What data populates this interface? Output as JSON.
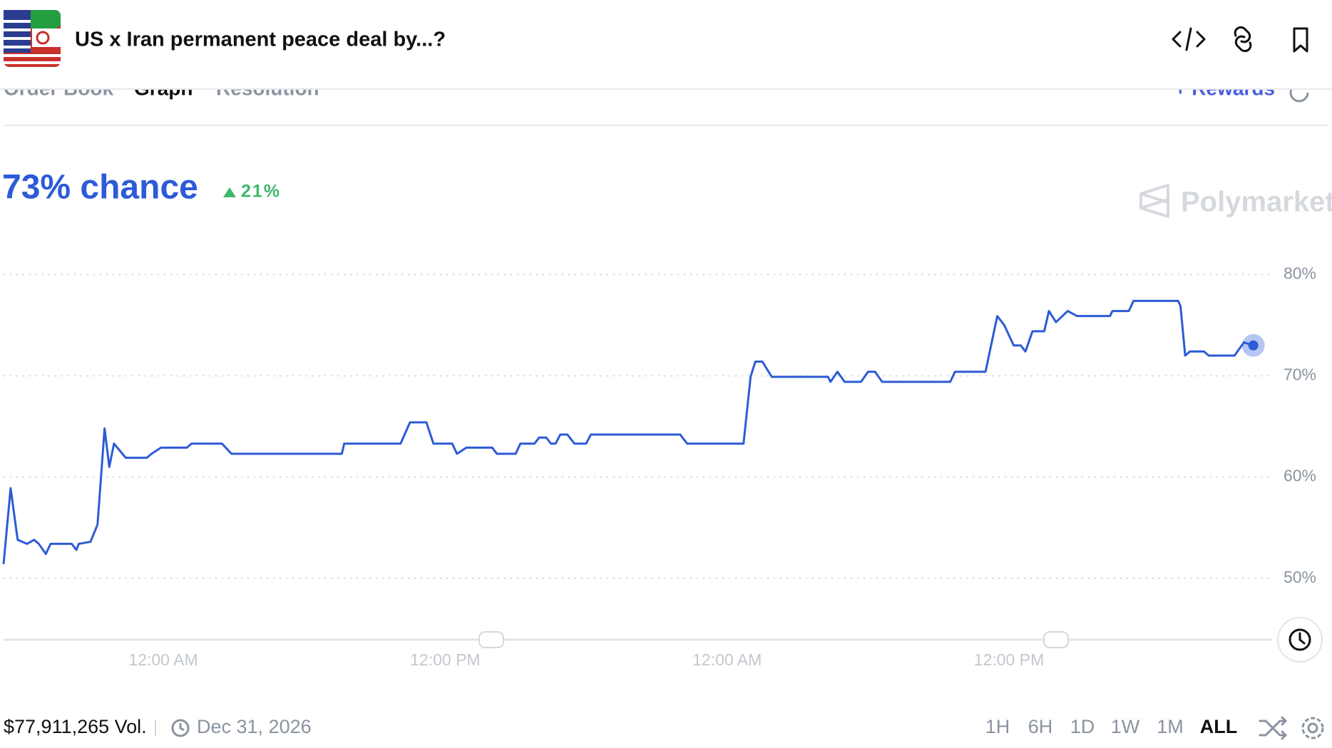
{
  "header": {
    "title": "US x Iran permanent peace deal by...?"
  },
  "tabs": [
    "Order Book",
    "Graph",
    "Resolution",
    "+ Rewards"
  ],
  "market": {
    "headline": "73% chance",
    "change": "21%",
    "brand": "Polymarket"
  },
  "chart_data": {
    "type": "line",
    "x": [
      5.2,
      5.5,
      5.8,
      6.2,
      6.5,
      6.7,
      7.0,
      7.2,
      8.1,
      8.3,
      8.4,
      8.9,
      9.2,
      9.5,
      9.7,
      9.9,
      10.4,
      11.3,
      11.5,
      11.9,
      13.0,
      13.2,
      14.5,
      14.9,
      19.6,
      19.7,
      22.1,
      22.5,
      23.2,
      23.5,
      24.3,
      24.5,
      24.9,
      26.0,
      26.2,
      27.0,
      27.2,
      27.8,
      28.0,
      28.3,
      28.5,
      28.7,
      28.9,
      29.2,
      29.5,
      30.0,
      30.2,
      34.0,
      34.3,
      36.7,
      37.0,
      37.2,
      37.5,
      37.9,
      40.3,
      40.4,
      40.7,
      41.0,
      41.7,
      42.0,
      42.3,
      42.6,
      45.5,
      45.7,
      47.0,
      47.5,
      47.8,
      48.2,
      48.5,
      48.7,
      49.0,
      49.5,
      49.7,
      50.0,
      50.5,
      50.9,
      52.3,
      52.4,
      53.1,
      53.3,
      55.2,
      55.3,
      55.5,
      55.7,
      56.3,
      56.5,
      57.6,
      58.0,
      58.4
    ],
    "series": [
      {
        "color": "#2d5bd7",
        "values": [
          51.4,
          58.9,
          53.8,
          53.4,
          53.8,
          53.4,
          52.4,
          53.4,
          53.4,
          52.8,
          53.4,
          53.6,
          55.3,
          64.8,
          61.0,
          63.3,
          61.9,
          61.9,
          62.3,
          62.9,
          62.9,
          63.3,
          63.3,
          62.3,
          62.3,
          63.3,
          63.3,
          65.4,
          65.4,
          63.3,
          63.3,
          62.3,
          62.9,
          62.9,
          62.3,
          62.3,
          63.3,
          63.3,
          63.9,
          63.9,
          63.3,
          63.3,
          64.2,
          64.2,
          63.3,
          63.3,
          64.2,
          64.2,
          63.3,
          63.3,
          69.9,
          71.4,
          71.4,
          69.9,
          69.9,
          69.4,
          70.4,
          69.4,
          69.4,
          70.4,
          70.4,
          69.4,
          69.4,
          70.4,
          70.4,
          75.9,
          75.0,
          73.0,
          73.0,
          72.4,
          74.4,
          74.4,
          76.4,
          75.3,
          76.4,
          75.9,
          75.9,
          76.4,
          76.4,
          77.4,
          77.4,
          76.9,
          72.0,
          72.4,
          72.4,
          72.0,
          72.0,
          73.3,
          73.0
        ]
      }
    ],
    "xlim": [
      5.2,
      59.2
    ],
    "ylim": [
      44,
      82
    ],
    "xticks": [
      {
        "value": 12,
        "label": "12:00 AM"
      },
      {
        "value": 24,
        "label": "12:00 PM"
      },
      {
        "value": 36,
        "label": "12:00 AM"
      },
      {
        "value": 48,
        "label": "12:00 PM"
      }
    ],
    "yticks": [
      {
        "value": 50,
        "label": "50%"
      },
      {
        "value": 60,
        "label": "60%"
      },
      {
        "value": 70,
        "label": "70%"
      },
      {
        "value": 80,
        "label": "80%"
      }
    ],
    "grid": true
  },
  "footer": {
    "volume": "$77,911,265 Vol.",
    "end_date": "Dec 31, 2026",
    "ranges": [
      "1H",
      "6H",
      "1D",
      "1W",
      "1M",
      "ALL"
    ]
  }
}
